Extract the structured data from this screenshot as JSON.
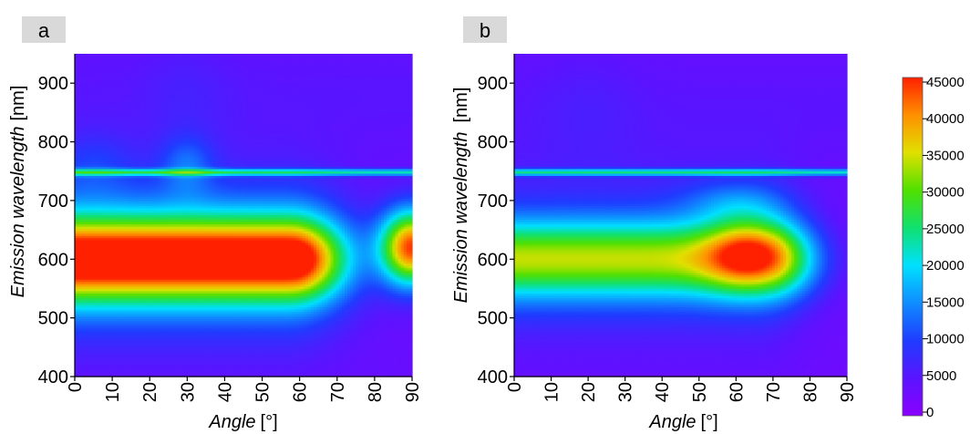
{
  "chart_data": [
    {
      "panel_label": "a",
      "type": "heatmap",
      "xlabel": "Angle",
      "xunit": "[°]",
      "ylabel": "Emission wavelength",
      "yunit": "[nm]",
      "xlim": [
        0,
        90
      ],
      "ylim": [
        400,
        950
      ],
      "xticks": [
        0,
        10,
        20,
        30,
        40,
        50,
        60,
        70,
        80,
        90
      ],
      "yticks": [
        400,
        500,
        600,
        700,
        800,
        900
      ],
      "notable_features": [
        {
          "kind": "band",
          "wavelength": 600,
          "angle_range": [
            0,
            70
          ],
          "peak_intensity": 40000
        },
        {
          "kind": "hotspot",
          "angle": 90,
          "wavelength": 620,
          "peak_intensity": 42000
        },
        {
          "kind": "line",
          "wavelength": 748,
          "angle_range": [
            0,
            90
          ],
          "intensity": 18000
        }
      ]
    },
    {
      "panel_label": "b",
      "type": "heatmap",
      "xlabel": "Angle",
      "xunit": "[°]",
      "ylabel": "Emission wavelength",
      "yunit": "[nm]",
      "xlim": [
        0,
        90
      ],
      "ylim": [
        400,
        950
      ],
      "xticks": [
        0,
        10,
        20,
        30,
        40,
        50,
        60,
        70,
        80,
        90
      ],
      "yticks": [
        400,
        500,
        600,
        700,
        800,
        900
      ],
      "notable_features": [
        {
          "kind": "band",
          "wavelength": 600,
          "angle_range": [
            0,
            85
          ],
          "peak_intensity": 26000
        },
        {
          "kind": "hotspot",
          "angle": 63,
          "wavelength": 610,
          "peak_intensity": 40000
        },
        {
          "kind": "line",
          "wavelength": 748,
          "angle_range": [
            0,
            90
          ],
          "intensity": 18000
        }
      ]
    }
  ],
  "colorbar": {
    "range": [
      0,
      45000
    ],
    "ticks": [
      "0",
      "5000",
      "10000",
      "15000",
      "20000",
      "25000",
      "30000",
      "35000",
      "40000",
      "45000"
    ],
    "colors": [
      "#8a00ff",
      "#5a14ff",
      "#1f3cff",
      "#0f8cff",
      "#00e0ff",
      "#10e070",
      "#50e000",
      "#e0e000",
      "#ff9000",
      "#ff2000"
    ]
  }
}
